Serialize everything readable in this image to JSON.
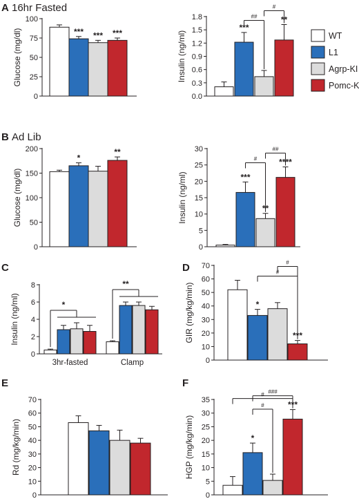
{
  "colors": {
    "WT": "#ffffff",
    "L1": "#2a6fba",
    "Agrp-KI": "#dcdcdc",
    "Pomc-KI": "#c1272d",
    "stroke": "#231f20"
  },
  "legend": {
    "entries": [
      {
        "name": "WT",
        "color": "#ffffff"
      },
      {
        "name": "L1",
        "color": "#2a6fba"
      },
      {
        "name": "Agrp-KI",
        "color": "#dcdcdc"
      },
      {
        "name": "Pomc-KI",
        "color": "#c1272d"
      }
    ]
  },
  "panel_labels": {
    "A": {
      "letter": "A",
      "title": "16hr Fasted"
    },
    "B": {
      "letter": "B",
      "title": "Ad Lib"
    },
    "C": {
      "letter": "C"
    },
    "D": {
      "letter": "D"
    },
    "E": {
      "letter": "E"
    },
    "F": {
      "letter": "F"
    }
  },
  "chart_data": [
    {
      "id": "A_glucose",
      "type": "bar",
      "ylabel": "Glucose (mg/dl)",
      "ylim": [
        0,
        100
      ],
      "yticks": [
        0,
        25,
        50,
        75,
        100
      ],
      "groups": [
        {
          "label": "",
          "series": [
            {
              "name": "WT",
              "value": 89,
              "err": 3,
              "sig": ""
            },
            {
              "name": "L1",
              "value": 74,
              "err": 3,
              "sig": "***"
            },
            {
              "name": "Agrp-KI",
              "value": 69,
              "err": 3,
              "sig": "***"
            },
            {
              "name": "Pomc-KI",
              "value": 72,
              "err": 3,
              "sig": "***"
            }
          ]
        }
      ]
    },
    {
      "id": "A_insulin",
      "type": "bar",
      "ylabel": "Insulin (ng/ml)",
      "ylim": [
        0,
        1.8
      ],
      "yticks": [
        "0.0",
        "0.3",
        "0.6",
        "0.9",
        "1.2",
        "1.5",
        "1.8"
      ],
      "groups": [
        {
          "label": "",
          "series": [
            {
              "name": "WT",
              "value": 0.21,
              "err": 0.11,
              "sig": ""
            },
            {
              "name": "L1",
              "value": 1.22,
              "err": 0.22,
              "sig": "***"
            },
            {
              "name": "Agrp-KI",
              "value": 0.44,
              "err": 0.14,
              "sig": ""
            },
            {
              "name": "Pomc-KI",
              "value": 1.27,
              "err": 0.35,
              "sig": "**"
            }
          ]
        }
      ],
      "brackets": [
        {
          "from": 1,
          "to": 2,
          "label": "##"
        },
        {
          "from": 2,
          "to": 3,
          "label": "#"
        }
      ]
    },
    {
      "id": "B_glucose",
      "type": "bar",
      "ylabel": "Glucose (mg/dl)",
      "ylim": [
        0,
        200
      ],
      "yticks": [
        0,
        50,
        100,
        150,
        200
      ],
      "groups": [
        {
          "label": "",
          "series": [
            {
              "name": "WT",
              "value": 153,
              "err": 3,
              "sig": ""
            },
            {
              "name": "L1",
              "value": 165,
              "err": 6,
              "sig": "*"
            },
            {
              "name": "Agrp-KI",
              "value": 154,
              "err": 10,
              "sig": ""
            },
            {
              "name": "Pomc-KI",
              "value": 176,
              "err": 7,
              "sig": "**"
            }
          ]
        }
      ]
    },
    {
      "id": "B_insulin",
      "type": "bar",
      "ylabel": "Insulin (ng/ml)",
      "ylim": [
        0,
        30
      ],
      "yticks": [
        0,
        5,
        10,
        15,
        20,
        25,
        30
      ],
      "groups": [
        {
          "label": "",
          "series": [
            {
              "name": "WT",
              "value": 0.5,
              "err": 0.2,
              "sig": ""
            },
            {
              "name": "L1",
              "value": 16.6,
              "err": 3.2,
              "sig": "***"
            },
            {
              "name": "Agrp-KI",
              "value": 8.6,
              "err": 1.6,
              "sig": "**"
            },
            {
              "name": "Pomc-KI",
              "value": 21.2,
              "err": 3.2,
              "sig": "****"
            }
          ]
        }
      ],
      "brackets": [
        {
          "from": 1,
          "to": 2,
          "label": "#"
        },
        {
          "from": 2,
          "to": 3,
          "label": "##"
        }
      ]
    },
    {
      "id": "C_insulin",
      "type": "bar",
      "ylabel": "Insulin (ng/ml)",
      "ylim": [
        0,
        8
      ],
      "yticks": [
        0,
        2,
        4,
        6,
        8
      ],
      "groups": [
        {
          "label": "3hr-fasted",
          "series": [
            {
              "name": "WT",
              "value": 0.45,
              "err": 0.1
            },
            {
              "name": "L1",
              "value": 2.8,
              "err": 0.5
            },
            {
              "name": "Agrp-KI",
              "value": 2.9,
              "err": 0.7
            },
            {
              "name": "Pomc-KI",
              "value": 2.6,
              "err": 0.7
            }
          ],
          "sig": "*"
        },
        {
          "label": "Clamp",
          "series": [
            {
              "name": "WT",
              "value": 1.4,
              "err": 0.12
            },
            {
              "name": "L1",
              "value": 5.6,
              "err": 0.4
            },
            {
              "name": "Agrp-KI",
              "value": 5.6,
              "err": 0.4
            },
            {
              "name": "Pomc-KI",
              "value": 5.1,
              "err": 0.4
            }
          ],
          "sig": "**"
        }
      ]
    },
    {
      "id": "D_gir",
      "type": "bar",
      "ylabel": "GIR (mg/kg/min)",
      "ylim": [
        0,
        70
      ],
      "yticks": [
        0,
        10,
        20,
        30,
        40,
        50,
        60,
        70
      ],
      "groups": [
        {
          "label": "",
          "series": [
            {
              "name": "WT",
              "value": 52,
              "err": 7,
              "sig": ""
            },
            {
              "name": "L1",
              "value": 33,
              "err": 4.5,
              "sig": "*"
            },
            {
              "name": "Agrp-KI",
              "value": 38,
              "err": 4.5,
              "sig": ""
            },
            {
              "name": "Pomc-KI",
              "value": 12,
              "err": 2.5,
              "sig": "***"
            }
          ]
        }
      ],
      "brackets": [
        {
          "from": 1,
          "to": 3,
          "label": "#"
        },
        {
          "from": 2,
          "to": 3,
          "label": "#"
        }
      ]
    },
    {
      "id": "E_rd",
      "type": "bar",
      "ylabel": "Rd (mg/kg/min)",
      "ylim": [
        0,
        70
      ],
      "yticks": [
        0,
        10,
        20,
        30,
        40,
        50,
        60,
        70
      ],
      "groups": [
        {
          "label": "",
          "series": [
            {
              "name": "WT",
              "value": 53,
              "err": 5
            },
            {
              "name": "L1",
              "value": 47,
              "err": 4
            },
            {
              "name": "Agrp-KI",
              "value": 40,
              "err": 7.5
            },
            {
              "name": "Pomc-KI",
              "value": 38,
              "err": 3.5
            }
          ]
        }
      ]
    },
    {
      "id": "F_hgp",
      "type": "bar",
      "ylabel": "HGP (mg/kg/min)",
      "ylim": [
        0,
        35
      ],
      "yticks": [
        0,
        5,
        10,
        15,
        20,
        25,
        30,
        35
      ],
      "groups": [
        {
          "label": "",
          "series": [
            {
              "name": "WT",
              "value": 3.5,
              "err": 3.2,
              "sig": ""
            },
            {
              "name": "L1",
              "value": 15.5,
              "err": 3.5,
              "sig": "*"
            },
            {
              "name": "Agrp-KI",
              "value": 5.3,
              "err": 2.3,
              "sig": ""
            },
            {
              "name": "Pomc-KI",
              "value": 27.8,
              "err": 3.5,
              "sig": "***"
            }
          ]
        }
      ],
      "brackets": [
        {
          "from": 0,
          "to": 3,
          "label": "#"
        },
        {
          "from": 1,
          "to": 3,
          "label": "###"
        },
        {
          "from": 1,
          "to": 2,
          "label": "#"
        }
      ]
    }
  ]
}
